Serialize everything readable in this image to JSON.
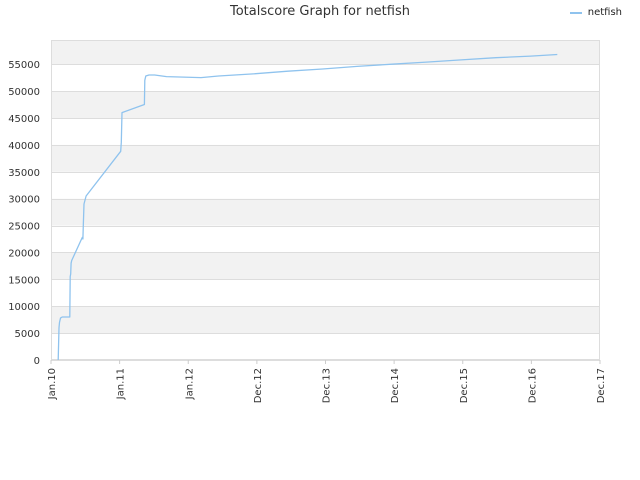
{
  "chart_data": {
    "type": "line",
    "title": "Totalscore Graph for netfish",
    "xlabel": "",
    "ylabel": "",
    "ylim": [
      0,
      59500
    ],
    "yticks": [
      0,
      5000,
      10000,
      15000,
      20000,
      25000,
      30000,
      35000,
      40000,
      45000,
      50000,
      55000
    ],
    "xlim": [
      "2010-01",
      "2017-12"
    ],
    "xticks": [
      "Jan.10",
      "Jan.11",
      "Jan.12",
      "Dec.12",
      "Dec.13",
      "Dec.14",
      "Dec.15",
      "Dec.16",
      "Dec.17"
    ],
    "grid": true,
    "legend_position": "top-right",
    "series": [
      {
        "name": "netfish",
        "color": "#8fc3ee",
        "x": [
          "2010-02-08",
          "2010-02-10",
          "2010-02-12",
          "2010-02-15",
          "2010-02-20",
          "2010-03-01",
          "2010-04-10",
          "2010-04-12",
          "2010-04-15",
          "2010-04-17",
          "2010-04-20",
          "2010-06-15",
          "2010-06-18",
          "2010-06-20",
          "2010-06-24",
          "2010-07-05",
          "2011-01-03",
          "2011-01-06",
          "2011-01-10",
          "2011-05-08",
          "2011-05-10",
          "2011-05-15",
          "2011-06-01",
          "2011-07-01",
          "2011-09-01",
          "2012-03-01",
          "2012-06-01",
          "2012-12-01",
          "2013-06-01",
          "2013-12-01",
          "2014-06-01",
          "2014-12-01",
          "2015-06-01",
          "2015-12-01",
          "2016-06-01",
          "2016-12-01",
          "2017-04-20"
        ],
        "values": [
          0,
          3000,
          6000,
          7000,
          7800,
          8000,
          8000,
          15500,
          16000,
          18000,
          18500,
          22800,
          22500,
          25000,
          29000,
          30500,
          38800,
          40500,
          46000,
          47500,
          52000,
          52800,
          53000,
          53000,
          52700,
          52500,
          52800,
          53200,
          53700,
          54100,
          54600,
          55000,
          55400,
          55800,
          56200,
          56500,
          56800
        ]
      }
    ]
  }
}
